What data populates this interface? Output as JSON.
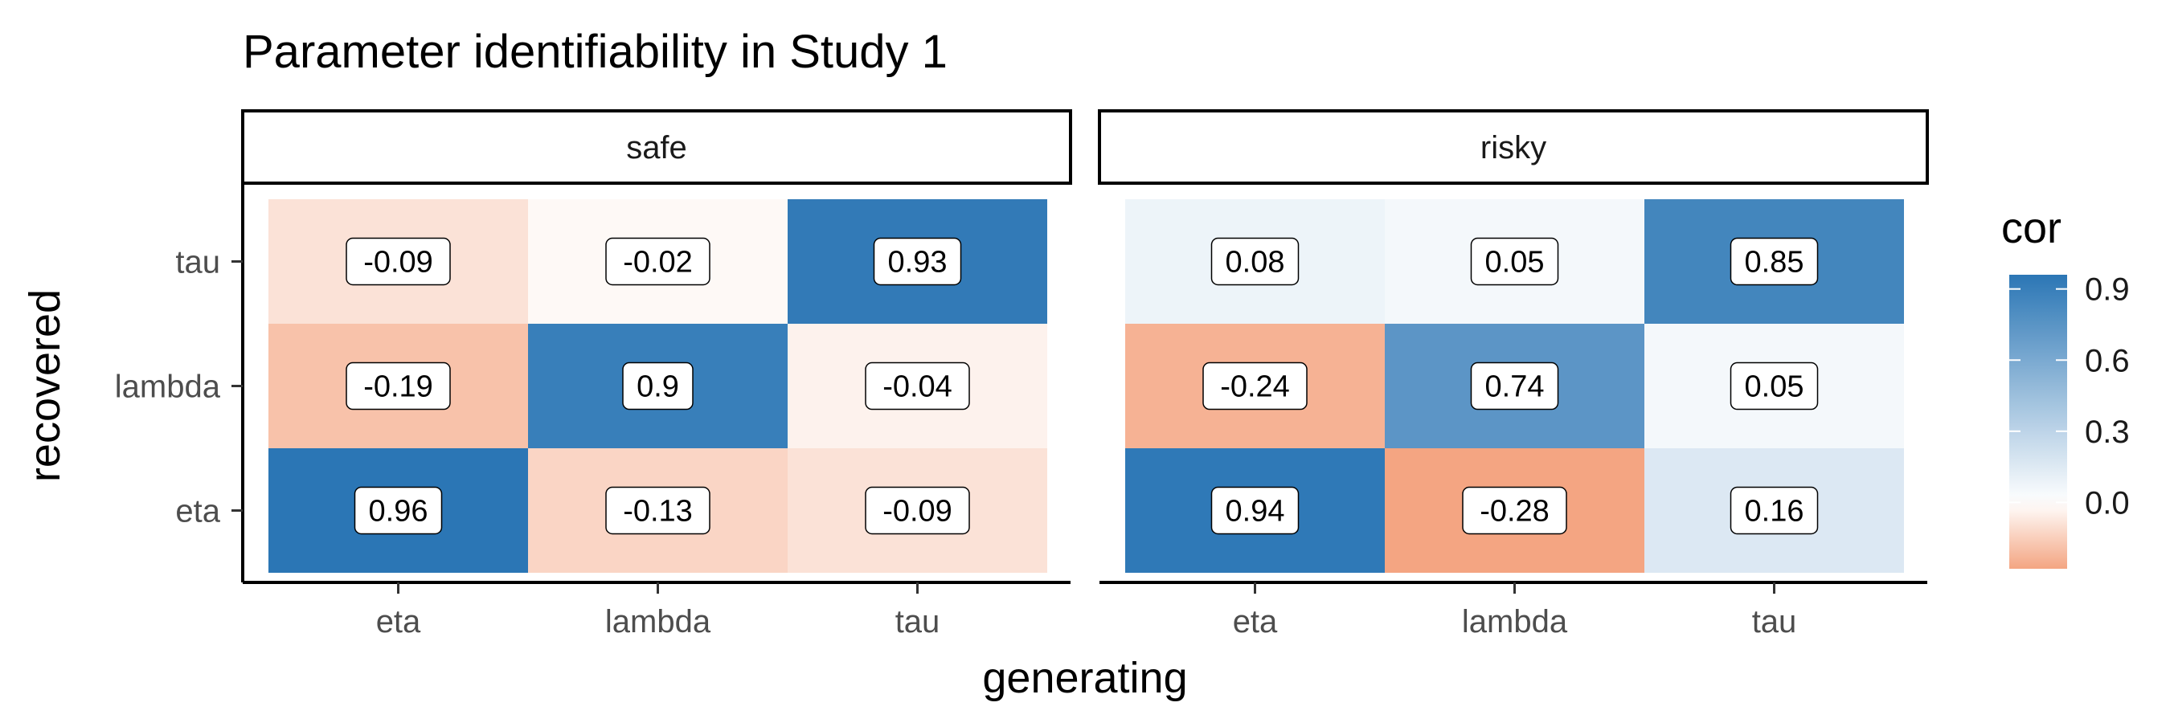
{
  "chart_data": {
    "type": "heatmap",
    "title": "Parameter identifiability in Study 1",
    "xlabel": "generating",
    "ylabel": "recovered",
    "x_categories": [
      "eta",
      "lambda",
      "tau"
    ],
    "y_categories": [
      "eta",
      "lambda",
      "tau"
    ],
    "panels": [
      {
        "name": "safe",
        "cells": [
          {
            "x": "eta",
            "y": "tau",
            "value": -0.09
          },
          {
            "x": "lambda",
            "y": "tau",
            "value": -0.02
          },
          {
            "x": "tau",
            "y": "tau",
            "value": 0.93
          },
          {
            "x": "eta",
            "y": "lambda",
            "value": -0.19
          },
          {
            "x": "lambda",
            "y": "lambda",
            "value": 0.9
          },
          {
            "x": "tau",
            "y": "lambda",
            "value": -0.04
          },
          {
            "x": "eta",
            "y": "eta",
            "value": 0.96
          },
          {
            "x": "lambda",
            "y": "eta",
            "value": -0.13
          },
          {
            "x": "tau",
            "y": "eta",
            "value": -0.09
          }
        ]
      },
      {
        "name": "risky",
        "cells": [
          {
            "x": "eta",
            "y": "tau",
            "value": 0.08
          },
          {
            "x": "lambda",
            "y": "tau",
            "value": 0.05
          },
          {
            "x": "tau",
            "y": "tau",
            "value": 0.85
          },
          {
            "x": "eta",
            "y": "lambda",
            "value": -0.24
          },
          {
            "x": "lambda",
            "y": "lambda",
            "value": 0.74
          },
          {
            "x": "tau",
            "y": "lambda",
            "value": 0.05
          },
          {
            "x": "eta",
            "y": "eta",
            "value": 0.94
          },
          {
            "x": "lambda",
            "y": "eta",
            "value": -0.28
          },
          {
            "x": "tau",
            "y": "eta",
            "value": 0.16
          }
        ]
      }
    ],
    "legend": {
      "title": "cor",
      "ticks": [
        0.9,
        0.6,
        0.3,
        0.0
      ],
      "tick_labels": [
        "0.9",
        "0.6",
        "0.3",
        "0.0"
      ],
      "range": [
        -0.28,
        0.96
      ],
      "low_color": "#f4a582",
      "mid_color": "#ffffff",
      "high_color": "#2b76b5",
      "placement": "right"
    },
    "grid": false
  }
}
